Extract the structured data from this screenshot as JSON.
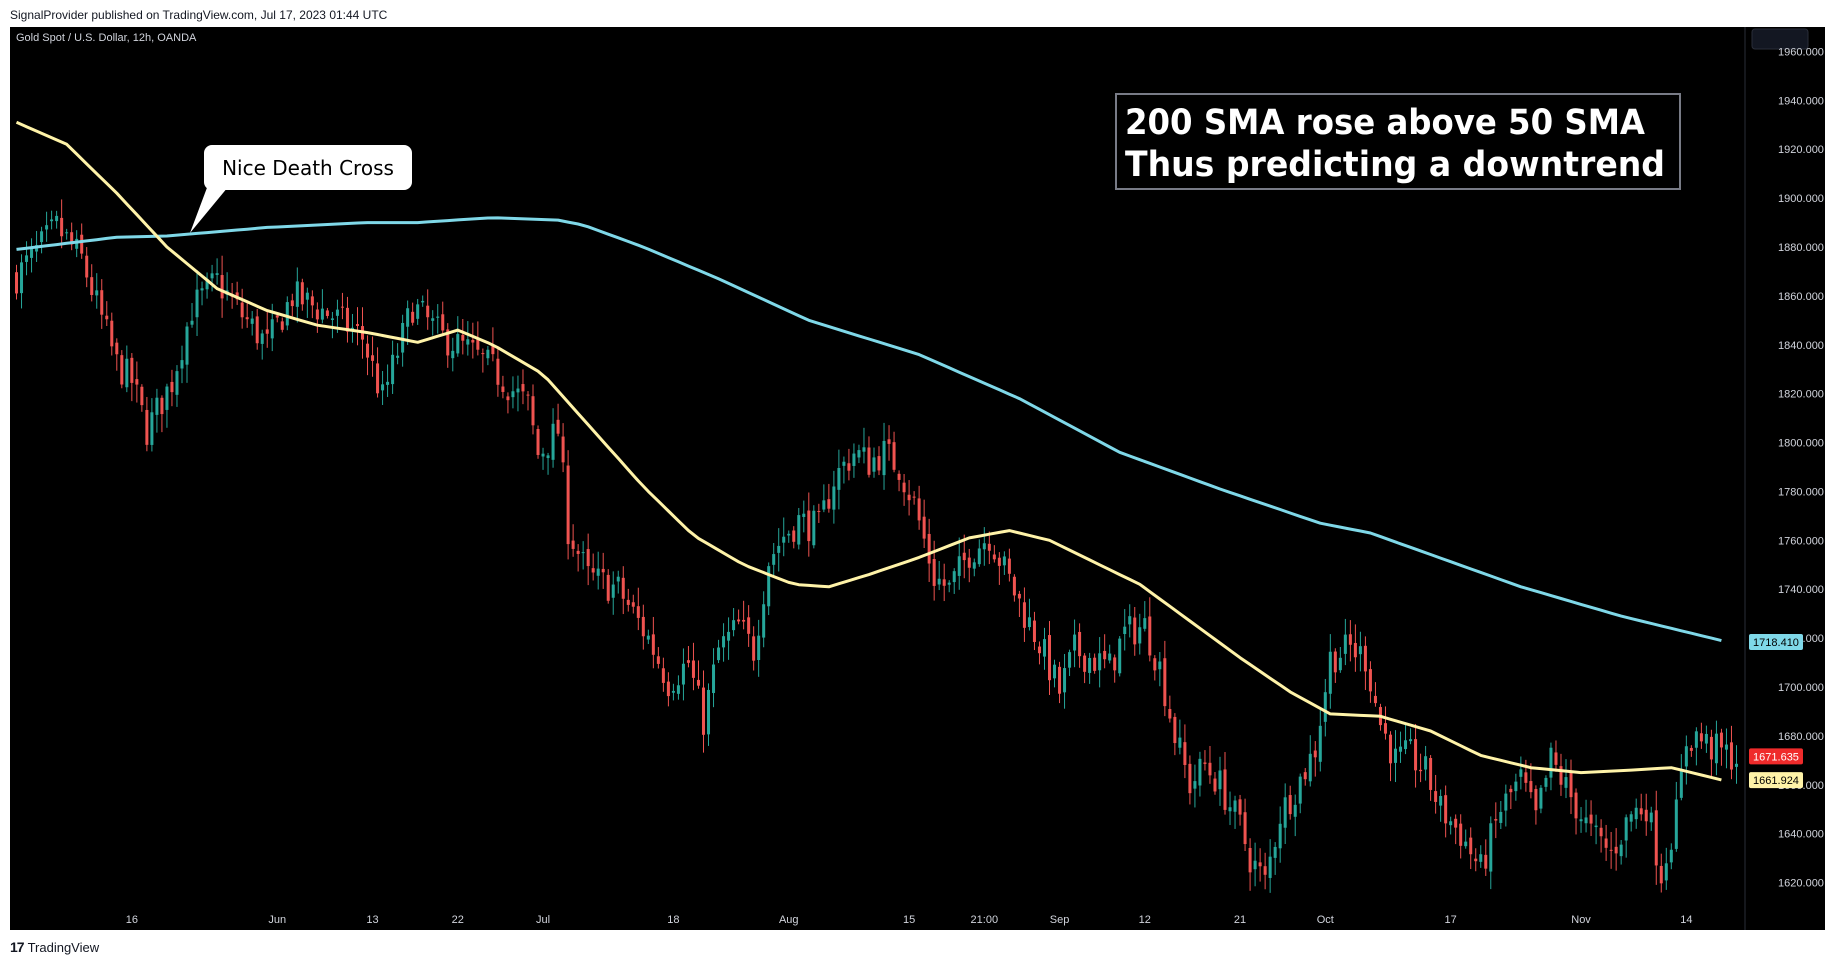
{
  "header": {
    "publish_line": "SignalProvider published on TradingView.com, Jul 17, 2023 01:44 UTC"
  },
  "footer": {
    "brand_mark": "17",
    "brand_name": "TradingView"
  },
  "colors": {
    "background": "#000000",
    "up_candle": "#26a69a",
    "down_candle": "#ef5350",
    "sma200": "#7fd8e8",
    "sma50": "#fff3a8",
    "axis_text": "#d1d4dc",
    "last_price_bg": "#ef2b2b"
  },
  "chart_data": {
    "type": "candlestick",
    "symbol_line": "Gold Spot / U.S. Dollar, 12h, OANDA",
    "ylim": [
      1610,
      1970
    ],
    "y_ticks": [
      1620,
      1640,
      1660,
      1680,
      1700,
      1720,
      1740,
      1760,
      1780,
      1800,
      1820,
      1840,
      1860,
      1880,
      1900,
      1920,
      1940,
      1960
    ],
    "y_tick_labels": [
      "1620.000",
      "1640.000",
      "1660.000",
      "1680.000",
      "1700.000",
      "1720.000",
      "1740.000",
      "1760.000",
      "1780.000",
      "1800.000",
      "1820.000",
      "1840.000",
      "1860.000",
      "1880.000",
      "1900.000",
      "1920.000",
      "1940.000",
      "1960.000"
    ],
    "bar_count": 344,
    "x_ticks": [
      {
        "bar": 23,
        "label": "16"
      },
      {
        "bar": 52,
        "label": "Jun"
      },
      {
        "bar": 71,
        "label": "13"
      },
      {
        "bar": 88,
        "label": "22"
      },
      {
        "bar": 105,
        "label": "Jul"
      },
      {
        "bar": 131,
        "label": "18"
      },
      {
        "bar": 154,
        "label": "Aug"
      },
      {
        "bar": 178,
        "label": "15"
      },
      {
        "bar": 193,
        "label": "21:00"
      },
      {
        "bar": 208,
        "label": "Sep"
      },
      {
        "bar": 225,
        "label": "12"
      },
      {
        "bar": 244,
        "label": "21"
      },
      {
        "bar": 261,
        "label": "Oct"
      },
      {
        "bar": 286,
        "label": "17"
      },
      {
        "bar": 312,
        "label": "Nov"
      },
      {
        "bar": 333,
        "label": "14"
      }
    ],
    "series": [
      {
        "kind": "candles",
        "close_path": [
          [
            0,
            1868
          ],
          [
            8,
            1888
          ],
          [
            13,
            1875
          ],
          [
            20,
            1832
          ],
          [
            23,
            1825
          ],
          [
            26,
            1805
          ],
          [
            31,
            1825
          ],
          [
            35,
            1855
          ],
          [
            40,
            1866
          ],
          [
            45,
            1852
          ],
          [
            50,
            1840
          ],
          [
            55,
            1860
          ],
          [
            63,
            1852
          ],
          [
            69,
            1843
          ],
          [
            73,
            1818
          ],
          [
            79,
            1856
          ],
          [
            85,
            1843
          ],
          [
            90,
            1838
          ],
          [
            95,
            1830
          ],
          [
            102,
            1815
          ],
          [
            104,
            1795
          ],
          [
            108,
            1805
          ],
          [
            110,
            1765
          ],
          [
            114,
            1745
          ],
          [
            120,
            1740
          ],
          [
            126,
            1720
          ],
          [
            130,
            1702
          ],
          [
            134,
            1710
          ],
          [
            137,
            1686
          ],
          [
            140,
            1715
          ],
          [
            144,
            1725
          ],
          [
            147,
            1715
          ],
          [
            150,
            1752
          ],
          [
            153,
            1762
          ],
          [
            156,
            1768
          ],
          [
            160,
            1765
          ],
          [
            163,
            1785
          ],
          [
            167,
            1796
          ],
          [
            170,
            1792
          ],
          [
            173,
            1796
          ],
          [
            176,
            1790
          ],
          [
            179,
            1775
          ],
          [
            183,
            1745
          ],
          [
            186,
            1740
          ],
          [
            190,
            1755
          ],
          [
            194,
            1762
          ],
          [
            197,
            1748
          ],
          [
            201,
            1730
          ],
          [
            204,
            1718
          ],
          [
            208,
            1698
          ],
          [
            211,
            1715
          ],
          [
            214,
            1712
          ],
          [
            218,
            1708
          ],
          [
            221,
            1722
          ],
          [
            225,
            1725
          ],
          [
            228,
            1708
          ],
          [
            231,
            1680
          ],
          [
            234,
            1660
          ],
          [
            237,
            1668
          ],
          [
            240,
            1660
          ],
          [
            244,
            1643
          ],
          [
            246,
            1630
          ],
          [
            249,
            1620
          ],
          [
            252,
            1648
          ],
          [
            256,
            1662
          ],
          [
            259,
            1675
          ],
          [
            262,
            1712
          ],
          [
            266,
            1716
          ],
          [
            269,
            1712
          ],
          [
            272,
            1685
          ],
          [
            275,
            1670
          ],
          [
            278,
            1672
          ],
          [
            281,
            1665
          ],
          [
            284,
            1650
          ],
          [
            288,
            1640
          ],
          [
            292,
            1625
          ],
          [
            296,
            1650
          ],
          [
            300,
            1662
          ],
          [
            303,
            1646
          ],
          [
            306,
            1670
          ],
          [
            310,
            1655
          ],
          [
            314,
            1640
          ],
          [
            318,
            1632
          ],
          [
            322,
            1648
          ],
          [
            325,
            1652
          ],
          [
            328,
            1624
          ],
          [
            331,
            1648
          ],
          [
            333,
            1678
          ],
          [
            335,
            1680
          ],
          [
            338,
            1675
          ],
          [
            343,
            1671
          ]
        ]
      },
      {
        "name": "200 SMA",
        "kind": "line",
        "points": [
          [
            0,
            1879
          ],
          [
            20,
            1884
          ],
          [
            30,
            1884.5
          ],
          [
            50,
            1888
          ],
          [
            70,
            1890
          ],
          [
            80,
            1890
          ],
          [
            95,
            1892
          ],
          [
            108,
            1891
          ],
          [
            113,
            1889
          ],
          [
            125,
            1880
          ],
          [
            140,
            1867
          ],
          [
            158,
            1850
          ],
          [
            180,
            1836
          ],
          [
            200,
            1818
          ],
          [
            220,
            1796
          ],
          [
            240,
            1781
          ],
          [
            260,
            1767
          ],
          [
            270,
            1763
          ],
          [
            285,
            1752
          ],
          [
            300,
            1741
          ],
          [
            320,
            1729
          ],
          [
            340,
            1719
          ]
        ]
      },
      {
        "name": "50 SMA",
        "kind": "line",
        "points": [
          [
            0,
            1931
          ],
          [
            10,
            1922
          ],
          [
            20,
            1902
          ],
          [
            30,
            1880
          ],
          [
            40,
            1863
          ],
          [
            50,
            1854
          ],
          [
            60,
            1848
          ],
          [
            70,
            1845
          ],
          [
            80,
            1841
          ],
          [
            88,
            1846
          ],
          [
            95,
            1840
          ],
          [
            105,
            1828
          ],
          [
            115,
            1805
          ],
          [
            125,
            1782
          ],
          [
            135,
            1762
          ],
          [
            145,
            1750
          ],
          [
            155,
            1742
          ],
          [
            162,
            1741
          ],
          [
            170,
            1746
          ],
          [
            180,
            1753
          ],
          [
            190,
            1761
          ],
          [
            198,
            1764
          ],
          [
            206,
            1760
          ],
          [
            214,
            1752
          ],
          [
            224,
            1742
          ],
          [
            234,
            1727
          ],
          [
            244,
            1712
          ],
          [
            254,
            1698
          ],
          [
            262,
            1689
          ],
          [
            272,
            1688
          ],
          [
            282,
            1682
          ],
          [
            292,
            1672
          ],
          [
            302,
            1667
          ],
          [
            312,
            1665
          ],
          [
            322,
            1666
          ],
          [
            330,
            1667
          ],
          [
            336,
            1664
          ],
          [
            340,
            1662
          ]
        ]
      }
    ],
    "price_badges": [
      {
        "id": "sma200",
        "label": "1718.410",
        "value": 1718.41
      },
      {
        "id": "last",
        "label": "1671.635",
        "value": 1671.635
      },
      {
        "id": "sma50",
        "label": "1661.924",
        "value": 1661.924
      }
    ],
    "annotations": {
      "callout": "Nice Death Cross",
      "callout_target": {
        "bar": 38,
        "value": 1886
      },
      "box_line1": "200 SMA rose above 50 SMA",
      "box_line2": "Thus predicting a downtrend"
    }
  }
}
